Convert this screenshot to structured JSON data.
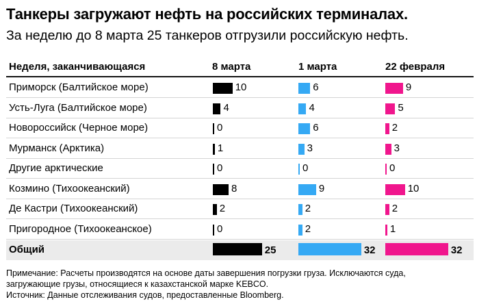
{
  "header": {
    "title": "Танкеры загружают нефть на российских терминалах.",
    "subtitle": "За неделю до 8 марта 25 танкеров отгрузили российскую нефть."
  },
  "notes": {
    "line1": "Примечание: Расчеты производятся на основе даты завершения погрузки груза. Исключаются суда,",
    "line2": "загружающие грузы, относящиеся к казахстанской марке KEBCO.",
    "source": "Источник: Данные отслеживания судов, предоставленные Bloomberg."
  },
  "colors": {
    "8 марта": "#000000",
    "1 марта": "#35a9f4",
    "22 февраля": "#f0168d"
  },
  "chart_data": {
    "type": "table",
    "row_header": "Неделя, заканчивающаяся",
    "categories": [
      "Приморск (Балтийское море)",
      "Усть-Луга (Балтийское море)",
      "Новороссийск (Черное море)",
      "Мурманск (Арктика)",
      "Другие арктические",
      "Козмино (Тихоокеанский)",
      "Де Кастри (Тихоокеанский)",
      "Пригородное (Тихоокеанское)"
    ],
    "total_label": "Общий",
    "series": [
      {
        "name": "8 марта",
        "values": [
          10,
          4,
          0,
          1,
          0,
          8,
          2,
          0
        ],
        "total": 25
      },
      {
        "name": "1 марта",
        "values": [
          6,
          4,
          6,
          3,
          0,
          9,
          2,
          2
        ],
        "total": 32
      },
      {
        "name": "22 февраля",
        "values": [
          9,
          5,
          2,
          3,
          0,
          10,
          2,
          1
        ],
        "total": 32
      }
    ]
  }
}
